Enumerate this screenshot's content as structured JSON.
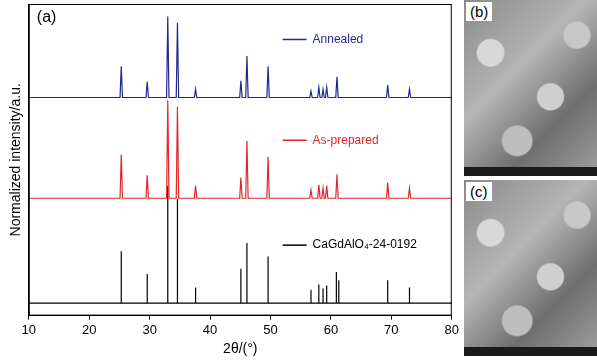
{
  "chart_data": {
    "type": "line",
    "panel_label": "(a)",
    "x_label": "2θ/(°)",
    "y_label": "Normalized intensity/a.u.",
    "xlim": [
      10,
      80
    ],
    "xticks": [
      10,
      20,
      30,
      40,
      50,
      60,
      70,
      80
    ],
    "ylim": [
      0,
      3
    ],
    "tick_labels": "x",
    "grid": false,
    "series": [
      {
        "name": "Annealed",
        "color": "#1f2a8c",
        "x": [
          10,
          25.1,
          25.3,
          25.5,
          29.4,
          29.6,
          29.8,
          32.8,
          33.0,
          33.2,
          34.4,
          34.6,
          34.8,
          37.4,
          37.6,
          37.8,
          44.9,
          45.1,
          45.3,
          45.9,
          46.1,
          46.3,
          49.4,
          49.6,
          49.8,
          56.5,
          56.7,
          56.9,
          57.8,
          58.0,
          58.2,
          58.5,
          58.7,
          58.9,
          59.1,
          59.3,
          59.5,
          60.8,
          61.0,
          61.2,
          69.2,
          69.4,
          69.6,
          72.8,
          73.0,
          73.2,
          80
        ],
        "values": [
          2.1,
          2.1,
          2.4,
          2.1,
          2.1,
          2.25,
          2.1,
          2.1,
          2.88,
          2.1,
          2.1,
          2.82,
          2.1,
          2.1,
          2.18,
          2.1,
          2.1,
          2.26,
          2.1,
          2.1,
          2.5,
          2.1,
          2.1,
          2.4,
          2.1,
          2.1,
          2.16,
          2.1,
          2.1,
          2.2,
          2.1,
          2.1,
          2.18,
          2.1,
          2.1,
          2.2,
          2.1,
          2.1,
          2.3,
          2.1,
          2.1,
          2.22,
          2.1,
          2.1,
          2.18,
          2.1,
          2.1
        ]
      },
      {
        "name": "As-prepared",
        "color": "#e3262b",
        "x": [
          10,
          25.1,
          25.3,
          25.5,
          29.4,
          29.6,
          29.8,
          32.8,
          33.0,
          33.2,
          34.4,
          34.6,
          34.8,
          37.4,
          37.6,
          37.8,
          44.9,
          45.1,
          45.3,
          45.9,
          46.1,
          46.3,
          49.4,
          49.6,
          49.8,
          56.5,
          56.7,
          56.9,
          57.8,
          58.0,
          58.2,
          58.5,
          58.7,
          58.9,
          59.1,
          59.3,
          59.5,
          60.8,
          61.0,
          61.2,
          69.2,
          69.4,
          69.6,
          72.8,
          73.0,
          73.2,
          80
        ],
        "values": [
          1.13,
          1.13,
          1.55,
          1.13,
          1.13,
          1.35,
          1.13,
          1.13,
          2.07,
          1.13,
          1.13,
          2.01,
          1.13,
          1.13,
          1.25,
          1.13,
          1.13,
          1.33,
          1.13,
          1.13,
          1.68,
          1.13,
          1.13,
          1.53,
          1.13,
          1.13,
          1.21,
          1.13,
          1.13,
          1.26,
          1.13,
          1.13,
          1.23,
          1.13,
          1.13,
          1.25,
          1.13,
          1.13,
          1.36,
          1.13,
          1.13,
          1.28,
          1.13,
          1.13,
          1.23,
          1.13,
          1.13
        ]
      },
      {
        "name": "CaGdAlO₄-24-0192",
        "color": "#000000",
        "x": [
          10,
          25.3,
          25.3,
          25.3,
          29.6,
          29.6,
          29.6,
          33.0,
          33.0,
          33.0,
          34.6,
          34.6,
          34.6,
          37.6,
          37.6,
          37.6,
          45.1,
          45.1,
          45.1,
          46.1,
          46.1,
          46.1,
          49.6,
          49.6,
          49.6,
          56.7,
          56.7,
          56.7,
          58.0,
          58.0,
          58.0,
          58.7,
          58.7,
          58.7,
          59.3,
          59.3,
          59.3,
          60.9,
          60.9,
          60.9,
          61.3,
          61.3,
          61.3,
          69.4,
          69.4,
          69.4,
          73.0,
          73.0,
          73.0,
          80
        ],
        "values": [
          0.12,
          0.12,
          0.62,
          0.12,
          0.12,
          0.4,
          0.12,
          0.12,
          1.25,
          0.12,
          0.12,
          1.12,
          0.12,
          0.12,
          0.27,
          0.12,
          0.12,
          0.45,
          0.12,
          0.12,
          0.7,
          0.12,
          0.12,
          0.57,
          0.12,
          0.12,
          0.25,
          0.12,
          0.12,
          0.3,
          0.12,
          0.12,
          0.26,
          0.12,
          0.12,
          0.29,
          0.12,
          0.12,
          0.42,
          0.12,
          0.12,
          0.34,
          0.12,
          0.12,
          0.34,
          0.12,
          0.12,
          0.27,
          0.12,
          0.12
        ]
      }
    ]
  },
  "images": [
    {
      "label": "(b)"
    },
    {
      "label": "(c)"
    }
  ]
}
